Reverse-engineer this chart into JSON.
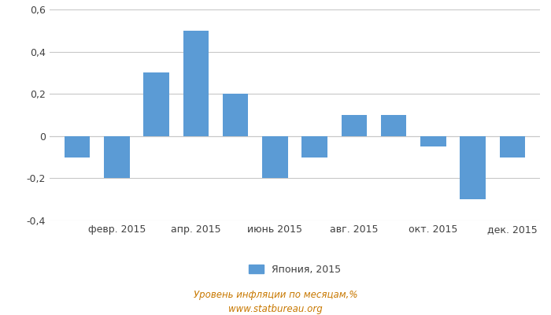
{
  "months": [
    1,
    2,
    3,
    4,
    5,
    6,
    7,
    8,
    9,
    10,
    11,
    12
  ],
  "values": [
    -0.1,
    -0.2,
    0.3,
    0.5,
    0.2,
    -0.2,
    -0.1,
    0.1,
    0.1,
    -0.05,
    -0.3,
    -0.1
  ],
  "tick_labels": [
    "февр. 2015",
    "апр. 2015",
    "июнь 2015",
    "авг. 2015",
    "окт. 2015",
    "дек. 2015"
  ],
  "tick_positions": [
    2,
    4,
    6,
    8,
    10,
    12
  ],
  "bar_color": "#5b9bd5",
  "ylim": [
    -0.4,
    0.6
  ],
  "yticks": [
    -0.4,
    -0.2,
    0.0,
    0.2,
    0.4,
    0.6
  ],
  "ytick_labels": [
    "-0,4",
    "-0,2",
    "0",
    "0,2",
    "0,4",
    "0,6"
  ],
  "legend_label": "Япония, 2015",
  "footer_line1": "Уровень инфляции по месяцам,%",
  "footer_line2": "www.statbureau.org",
  "background_color": "#ffffff",
  "grid_color": "#c8c8c8",
  "bar_width": 0.65,
  "text_color": "#404040",
  "footer_color": "#c87800",
  "tick_fontsize": 9,
  "legend_fontsize": 9,
  "footer_fontsize": 8.5
}
